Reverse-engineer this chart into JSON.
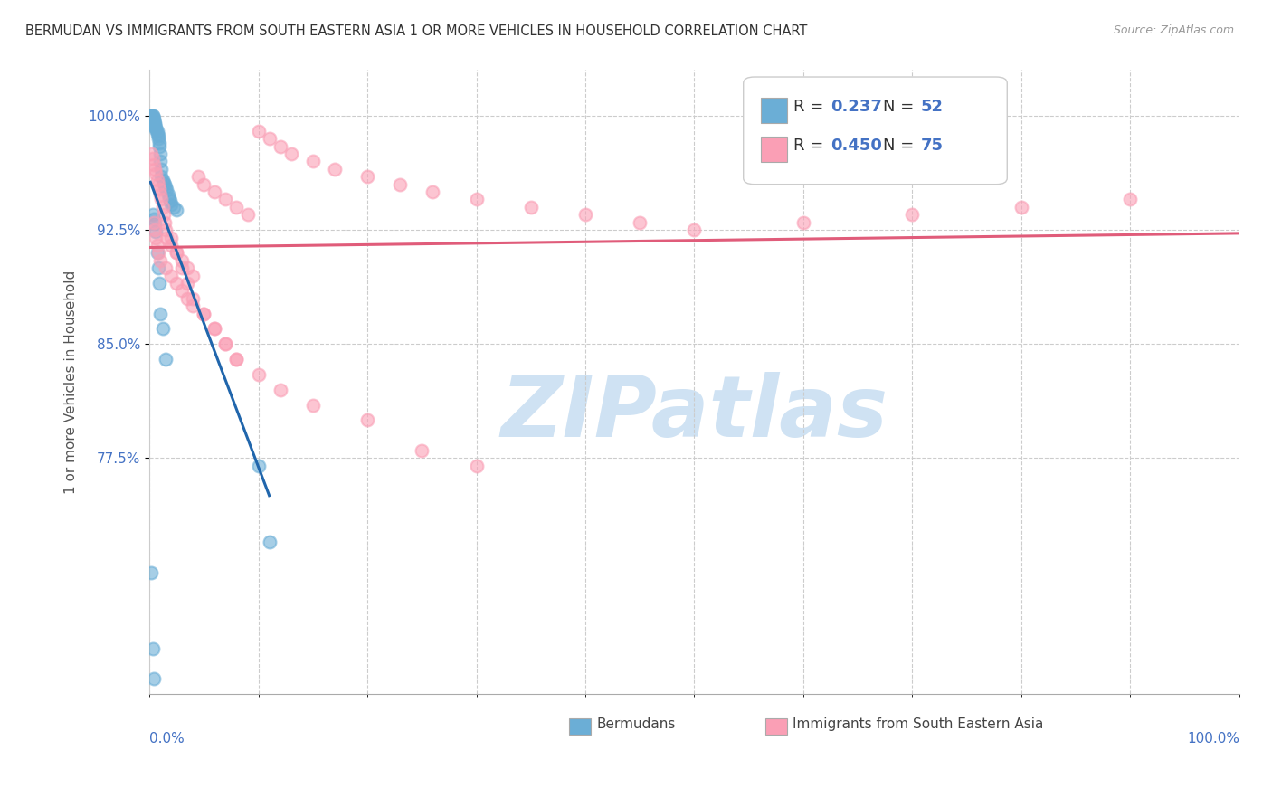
{
  "title": "BERMUDAN VS IMMIGRANTS FROM SOUTH EASTERN ASIA 1 OR MORE VEHICLES IN HOUSEHOLD CORRELATION CHART",
  "source": "Source: ZipAtlas.com",
  "ylabel": "1 or more Vehicles in Household",
  "xlim": [
    0.0,
    1.0
  ],
  "ylim": [
    0.62,
    1.03
  ],
  "yticks": [
    0.775,
    0.85,
    0.925,
    1.0
  ],
  "ytick_labels": [
    "77.5%",
    "85.0%",
    "92.5%",
    "100.0%"
  ],
  "legend_label1": "Bermudans",
  "legend_label2": "Immigrants from South Eastern Asia",
  "R1": 0.237,
  "N1": 52,
  "R2": 0.45,
  "N2": 75,
  "color_blue": "#6baed6",
  "color_pink": "#fa9fb5",
  "color_blue_line": "#2166ac",
  "color_pink_line": "#e05c7a",
  "color_text_blue": "#4472c4",
  "watermark_color": "#cfe2f3",
  "blue_x": [
    0.001,
    0.002,
    0.002,
    0.003,
    0.003,
    0.003,
    0.003,
    0.004,
    0.004,
    0.004,
    0.004,
    0.005,
    0.005,
    0.005,
    0.006,
    0.006,
    0.007,
    0.007,
    0.008,
    0.008,
    0.009,
    0.009,
    0.01,
    0.01,
    0.011,
    0.011,
    0.012,
    0.013,
    0.014,
    0.015,
    0.016,
    0.017,
    0.018,
    0.019,
    0.02,
    0.022,
    0.025,
    0.003,
    0.004,
    0.005,
    0.006,
    0.007,
    0.008,
    0.009,
    0.01,
    0.012,
    0.015,
    0.1,
    0.11,
    0.002,
    0.003,
    0.004
  ],
  "blue_y": [
    1.0,
    1.0,
    1.0,
    1.0,
    1.0,
    0.999,
    0.998,
    0.998,
    0.997,
    0.996,
    0.996,
    0.995,
    0.994,
    0.993,
    0.992,
    0.991,
    0.99,
    0.988,
    0.987,
    0.985,
    0.982,
    0.98,
    0.975,
    0.97,
    0.965,
    0.96,
    0.958,
    0.956,
    0.955,
    0.953,
    0.951,
    0.948,
    0.946,
    0.944,
    0.942,
    0.94,
    0.938,
    0.935,
    0.932,
    0.929,
    0.924,
    0.91,
    0.9,
    0.89,
    0.87,
    0.86,
    0.84,
    0.77,
    0.72,
    0.7,
    0.65,
    0.63
  ],
  "pink_x": [
    0.002,
    0.003,
    0.004,
    0.005,
    0.006,
    0.007,
    0.008,
    0.009,
    0.01,
    0.011,
    0.012,
    0.013,
    0.014,
    0.015,
    0.016,
    0.02,
    0.025,
    0.03,
    0.035,
    0.04,
    0.045,
    0.05,
    0.06,
    0.07,
    0.08,
    0.09,
    0.1,
    0.11,
    0.12,
    0.13,
    0.15,
    0.17,
    0.2,
    0.23,
    0.26,
    0.3,
    0.35,
    0.4,
    0.45,
    0.5,
    0.6,
    0.7,
    0.8,
    0.9,
    0.004,
    0.005,
    0.006,
    0.007,
    0.008,
    0.01,
    0.015,
    0.02,
    0.025,
    0.03,
    0.035,
    0.04,
    0.05,
    0.06,
    0.07,
    0.08,
    0.1,
    0.12,
    0.15,
    0.2,
    0.25,
    0.3,
    0.02,
    0.025,
    0.03,
    0.035,
    0.04,
    0.05,
    0.06,
    0.07,
    0.08
  ],
  "pink_y": [
    0.975,
    0.972,
    0.968,
    0.965,
    0.962,
    0.958,
    0.955,
    0.952,
    0.948,
    0.945,
    0.94,
    0.935,
    0.93,
    0.925,
    0.92,
    0.915,
    0.91,
    0.905,
    0.9,
    0.895,
    0.96,
    0.955,
    0.95,
    0.945,
    0.94,
    0.935,
    0.99,
    0.985,
    0.98,
    0.975,
    0.97,
    0.965,
    0.96,
    0.955,
    0.95,
    0.945,
    0.94,
    0.935,
    0.93,
    0.925,
    0.93,
    0.935,
    0.94,
    0.945,
    0.93,
    0.925,
    0.92,
    0.915,
    0.91,
    0.905,
    0.9,
    0.895,
    0.89,
    0.885,
    0.88,
    0.875,
    0.87,
    0.86,
    0.85,
    0.84,
    0.83,
    0.82,
    0.81,
    0.8,
    0.78,
    0.77,
    0.92,
    0.91,
    0.9,
    0.89,
    0.88,
    0.87,
    0.86,
    0.85,
    0.84
  ]
}
